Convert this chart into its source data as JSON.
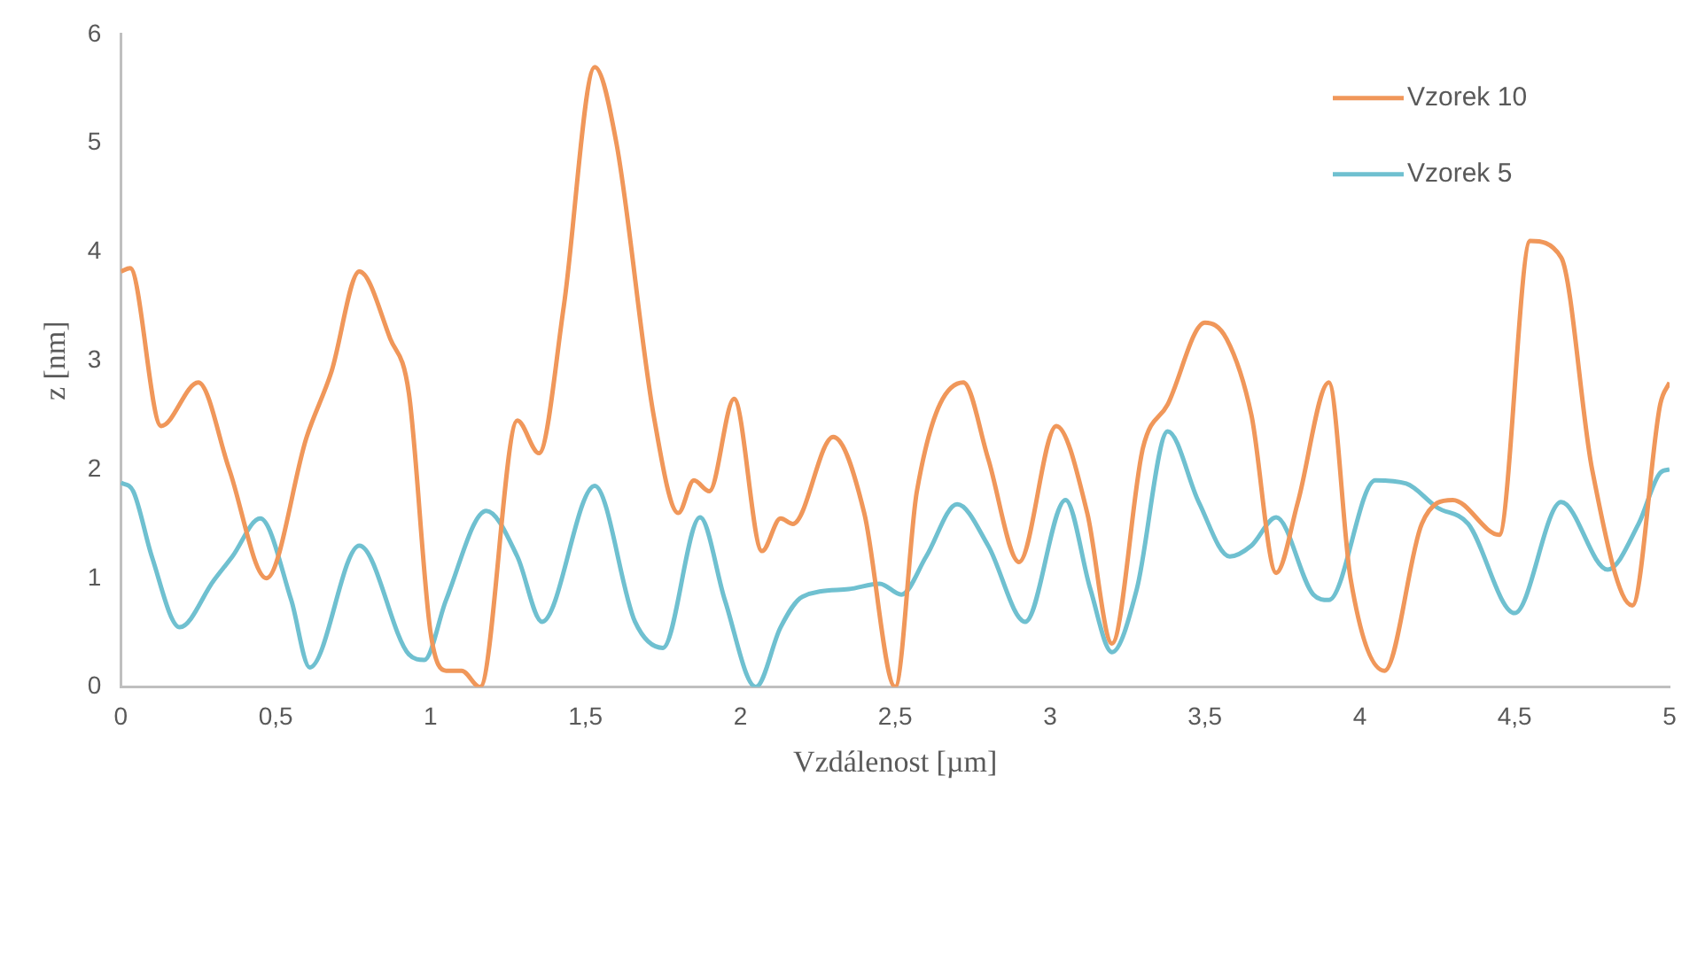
{
  "chart_data": {
    "type": "line",
    "xlabel": "Vzdálenost [µm]",
    "ylabel": "z [nm]",
    "xlim": [
      0,
      5
    ],
    "xticks": [
      0,
      {
        "value": 0.5,
        "label": "0,5"
      },
      1,
      {
        "value": 1.5,
        "label": "1,5"
      },
      2,
      {
        "value": 2.5,
        "label": "2,5"
      },
      3,
      {
        "value": 3.5,
        "label": "3,5"
      },
      4,
      {
        "value": 4.5,
        "label": "4,5"
      },
      5
    ],
    "ylim": [
      0,
      6
    ],
    "yticks": [
      0,
      1,
      2,
      3,
      4,
      5,
      6
    ],
    "grid": false,
    "legend": "top right",
    "marker": "none",
    "line_style": "solid",
    "series": [
      {
        "name": "Vzorek 10",
        "color": "#f0975a",
        "x": [
          0,
          0.03,
          0.13,
          0.25,
          0.35,
          0.47,
          0.6,
          0.68,
          0.77,
          0.87,
          0.93,
          1.0,
          1.05,
          1.1,
          1.16,
          1.28,
          1.35,
          1.43,
          1.53,
          1.6,
          1.72,
          1.8,
          1.85,
          1.9,
          1.98,
          2.07,
          2.13,
          2.17,
          2.3,
          2.4,
          2.5,
          2.57,
          2.72,
          2.8,
          2.9,
          3.02,
          3.12,
          3.2,
          3.3,
          3.38,
          3.5,
          3.57,
          3.65,
          3.73,
          3.8,
          3.9,
          3.97,
          4.08,
          4.2,
          4.3,
          4.45,
          4.55,
          4.65,
          4.75,
          4.88,
          4.97,
          5.0
        ],
        "values": [
          3.82,
          3.85,
          2.4,
          2.8,
          2.0,
          1.0,
          2.3,
          2.9,
          3.82,
          3.2,
          2.7,
          0.5,
          0.15,
          0.15,
          0.0,
          2.45,
          2.15,
          3.5,
          5.7,
          5.0,
          2.5,
          1.6,
          1.9,
          1.8,
          2.65,
          1.25,
          1.55,
          1.5,
          2.3,
          1.6,
          0.0,
          1.8,
          2.8,
          2.1,
          1.15,
          2.4,
          1.6,
          0.4,
          2.2,
          2.6,
          3.35,
          3.2,
          2.5,
          1.05,
          1.7,
          2.8,
          1.0,
          0.15,
          1.5,
          1.72,
          1.4,
          4.1,
          3.95,
          2.0,
          0.75,
          2.6,
          2.8
        ]
      },
      {
        "name": "Vzorek 5",
        "color": "#6fc0d0",
        "x": [
          0,
          0.04,
          0.1,
          0.19,
          0.3,
          0.36,
          0.45,
          0.55,
          0.61,
          0.77,
          0.93,
          0.98,
          1.05,
          1.18,
          1.28,
          1.36,
          1.53,
          1.66,
          1.75,
          1.87,
          1.95,
          2.05,
          2.13,
          2.2,
          2.35,
          2.45,
          2.52,
          2.6,
          2.7,
          2.8,
          2.92,
          3.05,
          3.13,
          3.2,
          3.28,
          3.38,
          3.48,
          3.58,
          3.65,
          3.73,
          3.85,
          3.9,
          4.05,
          4.15,
          4.25,
          4.35,
          4.5,
          4.65,
          4.8,
          4.9,
          4.97,
          5.0
        ],
        "values": [
          1.88,
          1.8,
          1.2,
          0.55,
          0.98,
          1.2,
          1.55,
          0.8,
          0.18,
          1.3,
          0.3,
          0.25,
          0.8,
          1.62,
          1.2,
          0.6,
          1.85,
          0.6,
          0.36,
          1.56,
          0.8,
          0.0,
          0.55,
          0.83,
          0.9,
          0.95,
          0.85,
          1.2,
          1.68,
          1.3,
          0.6,
          1.72,
          0.9,
          0.32,
          0.9,
          2.35,
          1.7,
          1.2,
          1.3,
          1.56,
          0.85,
          0.8,
          1.9,
          1.87,
          1.65,
          1.5,
          0.68,
          1.7,
          1.08,
          1.5,
          1.97,
          2.0
        ]
      }
    ]
  }
}
